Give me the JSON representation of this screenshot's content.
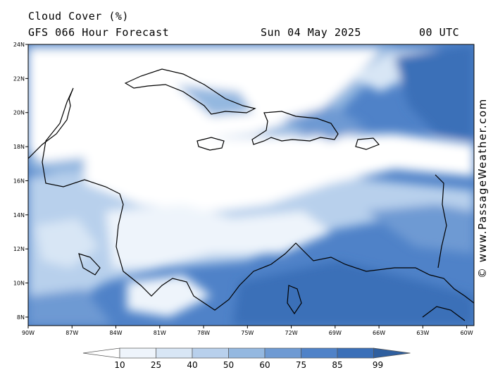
{
  "header": {
    "title": "Cloud Cover (%)",
    "model": "GFS 066 Hour Forecast",
    "date": "Sun 04 May 2025",
    "time": "00 UTC"
  },
  "credit": "© www.PassageWeather.com",
  "map": {
    "lat_labels": [
      "24N",
      "22N",
      "20N",
      "18N",
      "16N",
      "14N",
      "12N",
      "10N",
      "8N"
    ],
    "lon_labels": [
      "90W",
      "87W",
      "84W",
      "81W",
      "78W",
      "75W",
      "72W",
      "69W",
      "66W",
      "63W",
      "60W"
    ],
    "lat_range": [
      7.5,
      24
    ],
    "lon_range": [
      -90,
      -59.5
    ]
  },
  "colorbar": {
    "labels": [
      "10",
      "25",
      "40",
      "50",
      "60",
      "75",
      "85",
      "99"
    ],
    "colors": [
      "#ffffff",
      "#eef4fb",
      "#d8e6f5",
      "#b8d0ec",
      "#94b8e0",
      "#6e9ad3",
      "#4f82c8",
      "#3a6fb8"
    ]
  },
  "palette": {
    "deep": "#2f5f9f",
    "land_outline": "#000000"
  }
}
